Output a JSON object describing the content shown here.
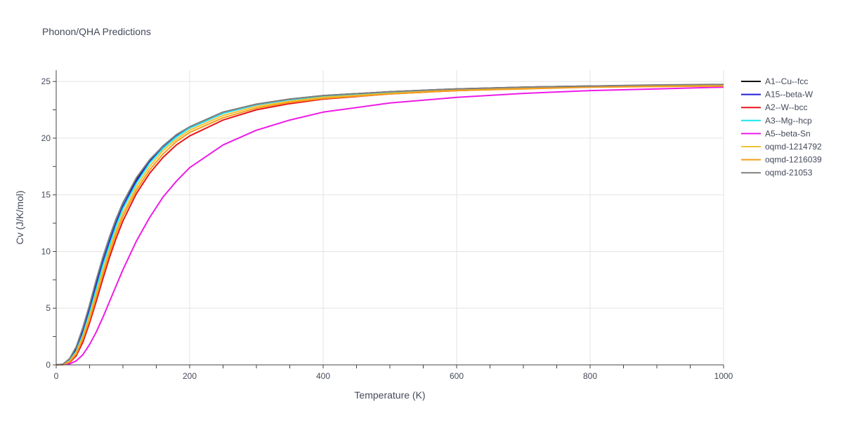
{
  "chart_data": {
    "type": "line",
    "title": "Phonon/QHA Predictions",
    "xlabel": "Temperature (K)",
    "ylabel": "Cv (J/K/mol)",
    "xlim": [
      0,
      1000
    ],
    "ylim": [
      0,
      26
    ],
    "x_ticks": [
      0,
      200,
      400,
      600,
      800,
      1000
    ],
    "y_ticks": [
      0,
      5,
      10,
      15,
      20,
      25
    ],
    "grid": true,
    "legend_position": "right",
    "x": [
      0,
      10,
      20,
      30,
      40,
      50,
      60,
      70,
      80,
      90,
      100,
      120,
      140,
      160,
      180,
      200,
      250,
      300,
      350,
      400,
      500,
      600,
      700,
      800,
      900,
      1000
    ],
    "series": [
      {
        "name": "A1--Cu--fcc",
        "color": "#111111",
        "values": [
          0,
          0.05,
          0.5,
          1.5,
          3.2,
          5.2,
          7.4,
          9.5,
          11.3,
          12.9,
          14.3,
          16.4,
          18.0,
          19.3,
          20.3,
          21.0,
          22.3,
          23.0,
          23.45,
          23.75,
          24.1,
          24.35,
          24.5,
          24.6,
          24.65,
          24.7
        ]
      },
      {
        "name": "A15--beta-W",
        "color": "#1f1fd6",
        "values": [
          0,
          0.04,
          0.4,
          1.3,
          2.9,
          4.9,
          7.0,
          9.1,
          10.9,
          12.6,
          14.0,
          16.2,
          17.9,
          19.2,
          20.2,
          20.9,
          22.2,
          22.95,
          23.4,
          23.7,
          24.05,
          24.3,
          24.45,
          24.55,
          24.6,
          24.65
        ]
      },
      {
        "name": "A2--W--bcc",
        "color": "#e8141c",
        "values": [
          0,
          0.02,
          0.2,
          0.8,
          2.0,
          3.7,
          5.6,
          7.6,
          9.5,
          11.2,
          12.7,
          15.1,
          16.9,
          18.3,
          19.4,
          20.2,
          21.6,
          22.5,
          23.05,
          23.45,
          23.9,
          24.2,
          24.4,
          24.55,
          24.6,
          24.65
        ]
      },
      {
        "name": "A3--Mg--hcp",
        "color": "#19e6f0",
        "values": [
          0,
          0.03,
          0.35,
          1.2,
          2.7,
          4.6,
          6.7,
          8.8,
          10.6,
          12.3,
          13.8,
          16.0,
          17.8,
          19.1,
          20.1,
          20.9,
          22.2,
          22.95,
          23.4,
          23.7,
          24.05,
          24.3,
          24.45,
          24.55,
          24.6,
          24.65
        ]
      },
      {
        "name": "A5--beta-Sn",
        "color": "#ee1be6",
        "values": [
          0,
          0.01,
          0.08,
          0.35,
          0.9,
          1.8,
          2.9,
          4.2,
          5.6,
          7.0,
          8.4,
          10.9,
          13.0,
          14.8,
          16.2,
          17.4,
          19.4,
          20.7,
          21.6,
          22.3,
          23.1,
          23.6,
          23.95,
          24.2,
          24.35,
          24.5
        ]
      },
      {
        "name": "oqmd-1214792",
        "color": "#f2c232",
        "values": [
          0,
          0.03,
          0.3,
          1.1,
          2.5,
          4.3,
          6.3,
          8.3,
          10.2,
          11.9,
          13.4,
          15.7,
          17.5,
          18.9,
          19.9,
          20.7,
          22.0,
          22.8,
          23.25,
          23.6,
          23.95,
          24.25,
          24.4,
          24.5,
          24.6,
          24.65
        ]
      },
      {
        "name": "oqmd-1216039",
        "color": "#f49d1a",
        "values": [
          0,
          0.02,
          0.25,
          0.95,
          2.3,
          4.0,
          6.0,
          8.0,
          9.9,
          11.6,
          13.1,
          15.4,
          17.2,
          18.6,
          19.7,
          20.5,
          21.8,
          22.65,
          23.15,
          23.5,
          23.9,
          24.2,
          24.35,
          24.5,
          24.55,
          24.6
        ]
      },
      {
        "name": "oqmd-21053",
        "color": "#808080",
        "values": [
          0,
          0.06,
          0.55,
          1.6,
          3.3,
          5.3,
          7.5,
          9.5,
          11.3,
          12.9,
          14.3,
          16.5,
          18.1,
          19.3,
          20.3,
          21.0,
          22.3,
          23.0,
          23.45,
          23.75,
          24.1,
          24.35,
          24.5,
          24.6,
          24.7,
          24.75
        ]
      }
    ]
  }
}
